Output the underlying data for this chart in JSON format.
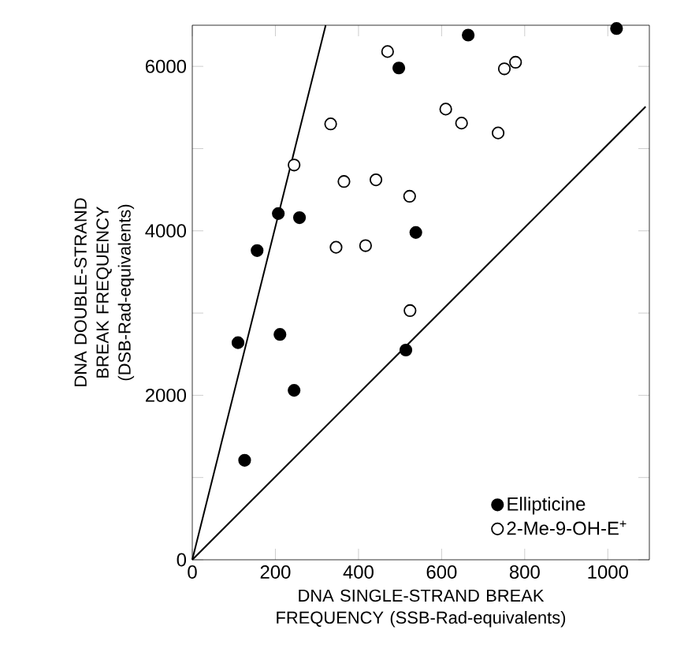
{
  "chart_data": {
    "type": "scatter",
    "xlabel": "DNA SINGLE-STRAND BREAK FREQUENCY (SSB-Rad-equivalents)",
    "ylabel": "DNA DOUBLE-STRAND BREAK FREQUENCY (DSB-Rad-equivalents)",
    "xlim": [
      0,
      1100
    ],
    "ylim": [
      0,
      6500
    ],
    "xticks": [
      0,
      200,
      400,
      600,
      800,
      1000
    ],
    "yticks": [
      0,
      {
        "value": 1000,
        "label": null
      },
      2000,
      {
        "value": 3000,
        "label": null
      },
      4000,
      {
        "value": 5000,
        "label": null
      },
      6000
    ],
    "legend": "bottom right",
    "series": [
      {
        "name": "Ellipticine",
        "color": "#000000",
        "marker": "circle",
        "x": [
          110,
          126,
          156,
          207,
          211,
          245,
          258,
          497,
          538,
          514,
          664,
          1021
        ],
        "values": [
          2640,
          1210,
          3760,
          4210,
          2740,
          2060,
          4160,
          5980,
          3980,
          2550,
          6380,
          6460
        ]
      },
      {
        "name": "2-Me-9-OH-E$^{+}$",
        "color": "#ffffff",
        "marker": "circle",
        "x": [
          470,
          333,
          245,
          365,
          442,
          523,
          346,
          417,
          610,
          648,
          736,
          751,
          778,
          524
        ],
        "values": [
          6180,
          5300,
          4800,
          4600,
          4620,
          4420,
          3800,
          3820,
          5480,
          5310,
          5190,
          5970,
          6050,
          3030
        ]
      },
      {
        "type": "line",
        "marker": "none",
        "color": "#000000",
        "x": [
          0,
          321
        ],
        "values": [
          0,
          6500
        ]
      },
      {
        "type": "line",
        "marker": "none",
        "color": "#000000",
        "x": [
          0,
          1091
        ],
        "values": [
          0,
          5510
        ]
      }
    ]
  }
}
